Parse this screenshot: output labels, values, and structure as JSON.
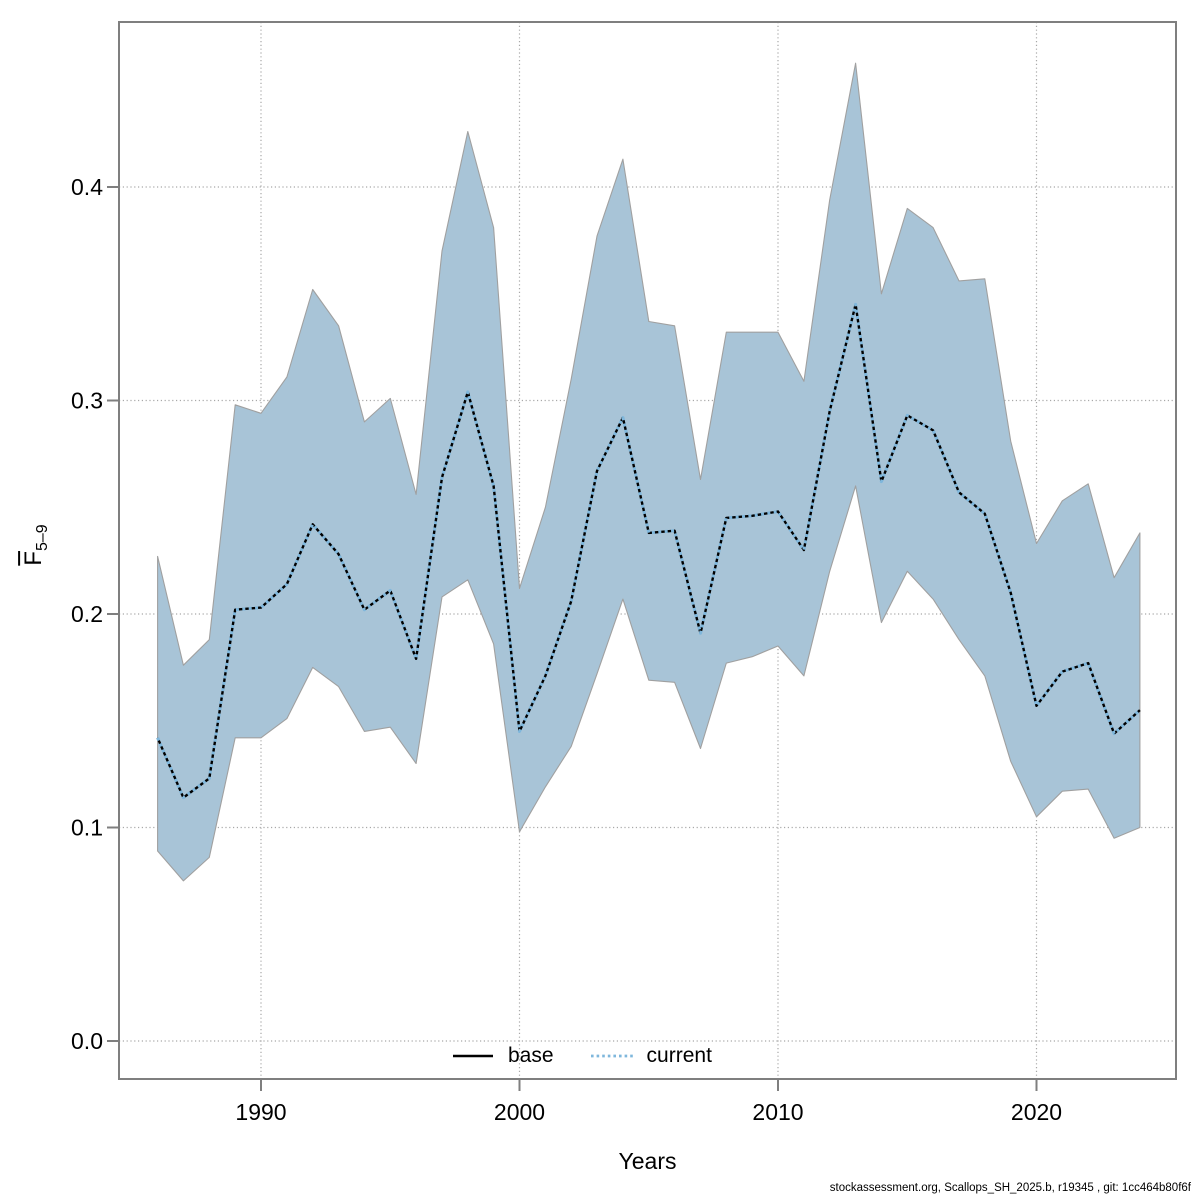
{
  "chart_data": {
    "type": "line",
    "title": "",
    "xlabel": "Years",
    "ylabel": "F̄5–9",
    "x": [
      1986,
      1987,
      1988,
      1989,
      1990,
      1991,
      1992,
      1993,
      1994,
      1995,
      1996,
      1997,
      1998,
      1999,
      2000,
      2001,
      2002,
      2003,
      2004,
      2005,
      2006,
      2007,
      2008,
      2009,
      2010,
      2011,
      2012,
      2013,
      2014,
      2015,
      2016,
      2017,
      2018,
      2019,
      2020,
      2021,
      2022,
      2023,
      2024
    ],
    "series": [
      {
        "name": "base",
        "style": "solid-black",
        "values": [
          0.142,
          0.114,
          0.123,
          0.202,
          0.203,
          0.214,
          0.242,
          0.228,
          0.202,
          0.211,
          0.179,
          0.264,
          0.304,
          0.26,
          0.145,
          0.171,
          0.206,
          0.267,
          0.292,
          0.238,
          0.239,
          0.191,
          0.245,
          0.246,
          0.248,
          0.23,
          0.295,
          0.345,
          0.262,
          0.293,
          0.286,
          0.257,
          0.247,
          0.21,
          0.157,
          0.173,
          0.177,
          0.144,
          0.155
        ]
      },
      {
        "name": "current",
        "style": "dotted-blue",
        "values": [
          0.142,
          0.114,
          0.123,
          0.202,
          0.203,
          0.214,
          0.242,
          0.228,
          0.202,
          0.211,
          0.179,
          0.264,
          0.304,
          0.26,
          0.145,
          0.171,
          0.206,
          0.267,
          0.292,
          0.238,
          0.239,
          0.191,
          0.245,
          0.246,
          0.248,
          0.23,
          0.295,
          0.345,
          0.262,
          0.293,
          0.286,
          0.257,
          0.247,
          0.21,
          0.157,
          0.173,
          0.177,
          0.144,
          0.155
        ]
      }
    ],
    "band": {
      "name": "confidence-band",
      "lo": [
        0.089,
        0.075,
        0.086,
        0.142,
        0.142,
        0.151,
        0.175,
        0.166,
        0.145,
        0.147,
        0.13,
        0.208,
        0.216,
        0.186,
        0.098,
        0.119,
        0.138,
        0.172,
        0.207,
        0.169,
        0.168,
        0.137,
        0.177,
        0.18,
        0.185,
        0.171,
        0.22,
        0.26,
        0.196,
        0.22,
        0.207,
        0.188,
        0.171,
        0.131,
        0.105,
        0.117,
        0.118,
        0.095,
        0.1
      ],
      "hi": [
        0.227,
        0.176,
        0.188,
        0.298,
        0.294,
        0.311,
        0.352,
        0.335,
        0.29,
        0.301,
        0.256,
        0.37,
        0.426,
        0.381,
        0.212,
        0.25,
        0.31,
        0.377,
        0.413,
        0.337,
        0.335,
        0.263,
        0.332,
        0.332,
        0.332,
        0.309,
        0.394,
        0.458,
        0.35,
        0.39,
        0.381,
        0.356,
        0.357,
        0.281,
        0.233,
        0.253,
        0.261,
        0.217,
        0.238
      ]
    },
    "xlim": [
      1984.5,
      2025.4
    ],
    "ylim": [
      -0.018,
      0.477
    ],
    "x_ticks": [
      1990,
      2000,
      2010,
      2020
    ],
    "x_tick_labels": [
      "1990",
      "2000",
      "2010",
      "2020"
    ],
    "y_ticks": [
      0.0,
      0.1,
      0.2,
      0.3,
      0.4
    ],
    "y_tick_labels": [
      "0.0",
      "0.1",
      "0.2",
      "0.3",
      "0.4"
    ],
    "grid": true,
    "legend_position": "bottom-center-inside"
  },
  "axes": {
    "x_title": "Years",
    "y_title_main": "F",
    "y_title_sub": "5–9"
  },
  "legend": {
    "base_label": "base",
    "current_label": "current"
  },
  "footer": {
    "attribution": "stockassessment.org, Scallops_SH_2025.b, r19345 , git: 1cc464b80f6f"
  },
  "colors": {
    "band_fill": "#a8c4d7",
    "band_stroke": "#a0a0a0",
    "base_line": "#000000",
    "current_line": "#7fb7dc",
    "grid": "#a8a8a8",
    "frame": "#7f7f7f",
    "tick": "#7f7f7f",
    "text": "#000000"
  }
}
